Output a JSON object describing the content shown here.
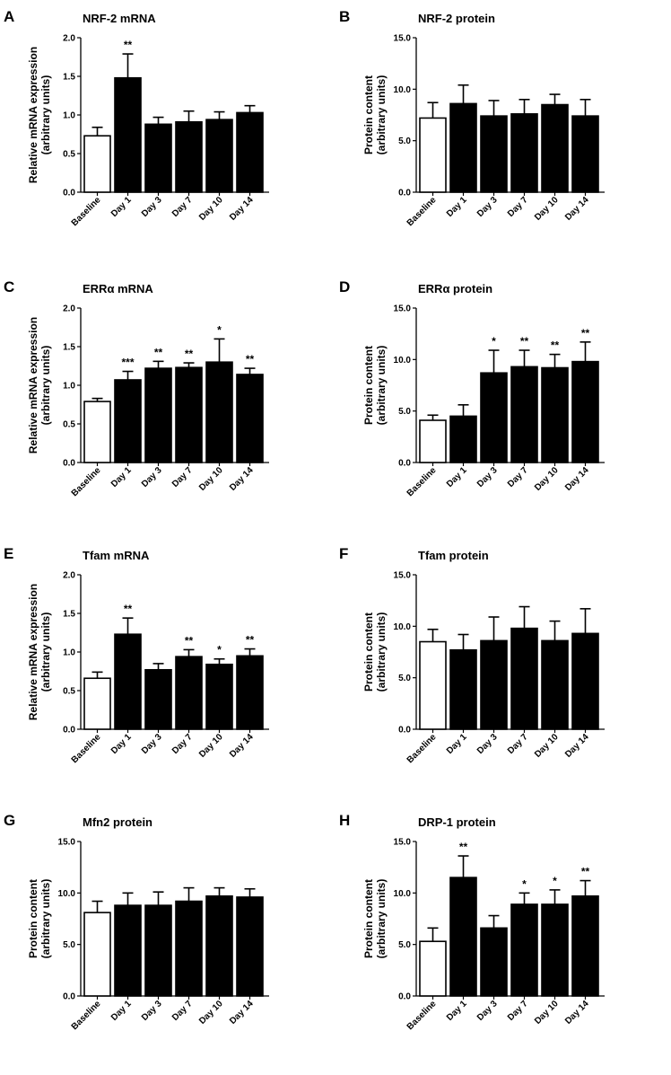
{
  "figure": {
    "categories": [
      "Baseline",
      "Day 1",
      "Day 3",
      "Day 7",
      "Day 10",
      "Day 14"
    ]
  },
  "chart_data": [
    {
      "panel": "A",
      "type": "bar",
      "title": "NRF-2 mRNA",
      "ylabel_line1": "Relative mRNA expression",
      "ylabel_line2": "(arbitrary units)",
      "ylim": [
        0,
        2.0
      ],
      "yticks": [
        "0.0",
        "0.5",
        "1.0",
        "1.5",
        "2.0"
      ],
      "categories": [
        "Baseline",
        "Day 1",
        "Day 3",
        "Day 7",
        "Day 10",
        "Day 14"
      ],
      "values": [
        0.73,
        1.48,
        0.88,
        0.91,
        0.94,
        1.03
      ],
      "errors": [
        0.11,
        0.31,
        0.09,
        0.14,
        0.1,
        0.09
      ],
      "significance": [
        "",
        "**",
        "",
        "",
        "",
        ""
      ]
    },
    {
      "panel": "B",
      "type": "bar",
      "title": "NRF-2 protein",
      "ylabel_line1": "Protein content",
      "ylabel_line2": "(arbitrary units)",
      "ylim": [
        0,
        15.0
      ],
      "yticks": [
        "0.0",
        "5.0",
        "10.0",
        "15.0"
      ],
      "categories": [
        "Baseline",
        "Day 1",
        "Day 3",
        "Day 7",
        "Day 10",
        "Day 14"
      ],
      "values": [
        7.2,
        8.6,
        7.4,
        7.6,
        8.5,
        7.4
      ],
      "errors": [
        1.5,
        1.8,
        1.5,
        1.4,
        1.0,
        1.6
      ],
      "significance": [
        "",
        "",
        "",
        "",
        "",
        ""
      ]
    },
    {
      "panel": "C",
      "type": "bar",
      "title": "ERRα mRNA",
      "ylabel_line1": "Relative mRNA expression",
      "ylabel_line2": "(arbitrary units)",
      "ylim": [
        0,
        2.0
      ],
      "yticks": [
        "0.0",
        "0.5",
        "1.0",
        "1.5",
        "2.0"
      ],
      "categories": [
        "Baseline",
        "Day 1",
        "Day 3",
        "Day 7",
        "Day 10",
        "Day 14"
      ],
      "values": [
        0.79,
        1.07,
        1.22,
        1.23,
        1.3,
        1.14
      ],
      "errors": [
        0.04,
        0.11,
        0.09,
        0.06,
        0.3,
        0.08
      ],
      "significance": [
        "",
        "***",
        "**",
        "**",
        "*",
        "**"
      ]
    },
    {
      "panel": "D",
      "type": "bar",
      "title": "ERRα protein",
      "ylabel_line1": "Protein content",
      "ylabel_line2": "(arbitrary units)",
      "ylim": [
        0,
        15.0
      ],
      "yticks": [
        "0.0",
        "5.0",
        "10.0",
        "15.0"
      ],
      "categories": [
        "Baseline",
        "Day 1",
        "Day 3",
        "Day 7",
        "Day 10",
        "Day 14"
      ],
      "values": [
        4.1,
        4.5,
        8.7,
        9.3,
        9.2,
        9.8
      ],
      "errors": [
        0.5,
        1.1,
        2.2,
        1.6,
        1.3,
        1.9
      ],
      "significance": [
        "",
        "",
        "*",
        "**",
        "**",
        "**"
      ]
    },
    {
      "panel": "E",
      "type": "bar",
      "title": "Tfam mRNA",
      "ylabel_line1": "Relative mRNA expression",
      "ylabel_line2": "(arbitrary units)",
      "ylim": [
        0,
        2.0
      ],
      "yticks": [
        "0.0",
        "0.5",
        "1.0",
        "1.5",
        "2.0"
      ],
      "categories": [
        "Baseline",
        "Day 1",
        "Day 3",
        "Day 7",
        "Day 10",
        "Day 14"
      ],
      "values": [
        0.66,
        1.23,
        0.77,
        0.94,
        0.84,
        0.95
      ],
      "errors": [
        0.08,
        0.21,
        0.08,
        0.09,
        0.07,
        0.09
      ],
      "significance": [
        "",
        "**",
        "",
        "**",
        "*",
        "**"
      ]
    },
    {
      "panel": "F",
      "type": "bar",
      "title": "Tfam protein",
      "ylabel_line1": "Protein content",
      "ylabel_line2": "(arbitrary units)",
      "ylim": [
        0,
        15.0
      ],
      "yticks": [
        "0.0",
        "5.0",
        "10.0",
        "15.0"
      ],
      "categories": [
        "Baseline",
        "Day 1",
        "Day 3",
        "Day 7",
        "Day 10",
        "Day 14"
      ],
      "values": [
        8.5,
        7.7,
        8.6,
        9.8,
        8.6,
        9.3
      ],
      "errors": [
        1.2,
        1.5,
        2.3,
        2.1,
        1.9,
        2.4
      ],
      "significance": [
        "",
        "",
        "",
        "",
        "",
        ""
      ]
    },
    {
      "panel": "G",
      "type": "bar",
      "title": "Mfn2 protein",
      "ylabel_line1": "Protein content",
      "ylabel_line2": "(arbitrary units)",
      "ylim": [
        0,
        15.0
      ],
      "yticks": [
        "0.0",
        "5.0",
        "10.0",
        "15.0"
      ],
      "categories": [
        "Baseline",
        "Day 1",
        "Day 3",
        "Day 7",
        "Day 10",
        "Day 14"
      ],
      "values": [
        8.1,
        8.8,
        8.8,
        9.2,
        9.7,
        9.6
      ],
      "errors": [
        1.1,
        1.2,
        1.3,
        1.3,
        0.8,
        0.8
      ],
      "significance": [
        "",
        "",
        "",
        "",
        "",
        ""
      ]
    },
    {
      "panel": "H",
      "type": "bar",
      "title": "DRP-1 protein",
      "ylabel_line1": "Protein content",
      "ylabel_line2": "(arbitrary units)",
      "ylim": [
        0,
        15.0
      ],
      "yticks": [
        "0.0",
        "5.0",
        "10.0",
        "15.0"
      ],
      "categories": [
        "Baseline",
        "Day 1",
        "Day 3",
        "Day 7",
        "Day 10",
        "Day 14"
      ],
      "values": [
        5.3,
        11.5,
        6.6,
        8.9,
        8.9,
        9.7
      ],
      "errors": [
        1.3,
        2.1,
        1.2,
        1.1,
        1.4,
        1.5
      ],
      "significance": [
        "",
        "**",
        "",
        "*",
        "*",
        "**"
      ]
    }
  ]
}
